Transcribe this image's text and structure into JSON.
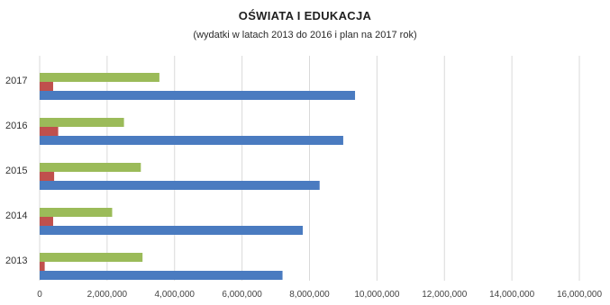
{
  "chart_data": {
    "type": "bar",
    "orientation": "horizontal",
    "title": "OŚWIATA I EDUKACJA",
    "subtitle": "(wydatki w latach 2013 do 2016 i plan  na 2017 rok)",
    "categories": [
      "2013",
      "2014",
      "2015",
      "2016",
      "2017"
    ],
    "xlim": [
      0,
      16000000
    ],
    "x_ticks": [
      0,
      2000000,
      4000000,
      6000000,
      8000000,
      10000000,
      12000000,
      14000000,
      16000000
    ],
    "x_tick_labels": [
      "0",
      "2,000,000",
      "4,000,000",
      "6,000,000",
      "8,000,000",
      "10,000,000",
      "12,000,000",
      "14,000,000",
      "16,000,000"
    ],
    "grid": "vertical",
    "legend": "none",
    "series": [
      {
        "color": "#4a7bc0",
        "values": [
          7200000,
          7800000,
          8300000,
          9000000,
          9350000
        ]
      },
      {
        "color": "#c0504d",
        "values": [
          150000,
          400000,
          430000,
          550000,
          400000
        ]
      },
      {
        "color": "#9bbb59",
        "values": [
          3050000,
          2150000,
          3000000,
          2500000,
          3550000
        ]
      }
    ]
  }
}
